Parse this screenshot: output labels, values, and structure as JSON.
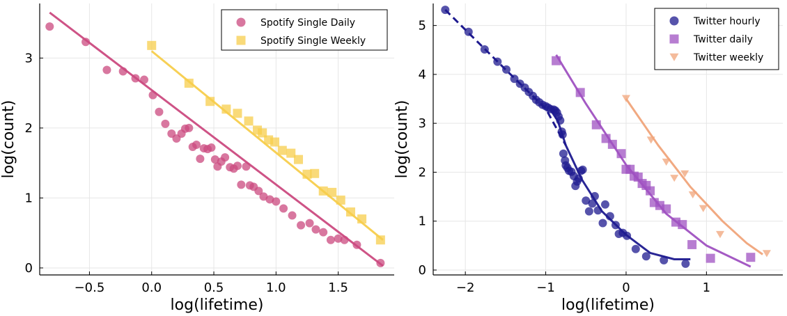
{
  "chart_data": [
    {
      "type": "scatter",
      "xlabel": "log(lifetime)",
      "ylabel": "log(count)",
      "xlim": [
        -0.9,
        1.95
      ],
      "ylim": [
        -0.1,
        3.78
      ],
      "xticks": [
        -0.5,
        0.0,
        0.5,
        1.0,
        1.5
      ],
      "xtick_labels": [
        "−0.5",
        "0.0",
        "0.5",
        "1.0",
        "1.5"
      ],
      "yticks": [
        0,
        1,
        2,
        3
      ],
      "ytick_labels": [
        "0",
        "1",
        "2",
        "3"
      ],
      "grid": true,
      "legend_position": "top-right",
      "series": [
        {
          "name": "Spotify Single Daily",
          "marker": "circle",
          "color": "#cb4a7f",
          "points": [
            [
              -0.82,
              3.45
            ],
            [
              -0.53,
              3.23
            ],
            [
              -0.36,
              2.83
            ],
            [
              -0.23,
              2.81
            ],
            [
              -0.13,
              2.71
            ],
            [
              -0.06,
              2.69
            ],
            [
              0.01,
              2.47
            ],
            [
              0.06,
              2.23
            ],
            [
              0.11,
              2.06
            ],
            [
              0.16,
              1.92
            ],
            [
              0.2,
              1.85
            ],
            [
              0.24,
              1.92
            ],
            [
              0.27,
              1.99
            ],
            [
              0.3,
              2.0
            ],
            [
              0.33,
              1.73
            ],
            [
              0.36,
              1.76
            ],
            [
              0.39,
              1.56
            ],
            [
              0.42,
              1.71
            ],
            [
              0.45,
              1.7
            ],
            [
              0.48,
              1.72
            ],
            [
              0.51,
              1.55
            ],
            [
              0.53,
              1.45
            ],
            [
              0.56,
              1.52
            ],
            [
              0.59,
              1.58
            ],
            [
              0.63,
              1.44
            ],
            [
              0.66,
              1.42
            ],
            [
              0.69,
              1.46
            ],
            [
              0.72,
              1.19
            ],
            [
              0.76,
              1.45
            ],
            [
              0.79,
              1.18
            ],
            [
              0.82,
              1.16
            ],
            [
              0.86,
              1.1
            ],
            [
              0.9,
              1.02
            ],
            [
              0.95,
              0.98
            ],
            [
              1.0,
              0.95
            ],
            [
              1.06,
              0.85
            ],
            [
              1.13,
              0.75
            ],
            [
              1.2,
              0.61
            ],
            [
              1.27,
              0.64
            ],
            [
              1.32,
              0.55
            ],
            [
              1.38,
              0.51
            ],
            [
              1.44,
              0.4
            ],
            [
              1.5,
              0.42
            ],
            [
              1.55,
              0.4
            ],
            [
              1.65,
              0.33
            ],
            [
              1.84,
              0.07
            ]
          ],
          "fit_line": [
            [
              -0.82,
              3.65
            ],
            [
              1.86,
              0.03
            ]
          ]
        },
        {
          "name": "Spotify Single Weekly",
          "marker": "square",
          "color": "#f7ce4c",
          "points": [
            [
              0.0,
              3.18
            ],
            [
              0.3,
              2.64
            ],
            [
              0.47,
              2.38
            ],
            [
              0.6,
              2.27
            ],
            [
              0.69,
              2.21
            ],
            [
              0.78,
              2.1
            ],
            [
              0.85,
              1.97
            ],
            [
              0.89,
              1.93
            ],
            [
              0.94,
              1.83
            ],
            [
              0.99,
              1.8
            ],
            [
              1.05,
              1.68
            ],
            [
              1.12,
              1.64
            ],
            [
              1.18,
              1.55
            ],
            [
              1.25,
              1.34
            ],
            [
              1.31,
              1.35
            ],
            [
              1.38,
              1.1
            ],
            [
              1.45,
              1.08
            ],
            [
              1.52,
              0.97
            ],
            [
              1.6,
              0.8
            ],
            [
              1.69,
              0.7
            ],
            [
              1.84,
              0.4
            ]
          ],
          "fit_line": [
            [
              0.0,
              3.1
            ],
            [
              1.86,
              0.4
            ]
          ]
        }
      ]
    },
    {
      "type": "scatter",
      "xlabel": "log(lifetime)",
      "ylabel": "log(count)",
      "xlim": [
        -2.4,
        1.95
      ],
      "ylim": [
        -0.1,
        5.45
      ],
      "xticks": [
        -2,
        -1,
        0,
        1
      ],
      "xtick_labels": [
        "−2",
        "−1",
        "0",
        "1"
      ],
      "yticks": [
        0,
        1,
        2,
        3,
        4,
        5
      ],
      "ytick_labels": [
        "0",
        "1",
        "2",
        "3",
        "4",
        "5"
      ],
      "grid": true,
      "legend_position": "top-right",
      "series": [
        {
          "name": "Twitter hourly",
          "marker": "circle",
          "color": "#1e1a8f",
          "points": [
            [
              -2.25,
              5.32
            ],
            [
              -1.96,
              4.87
            ],
            [
              -1.76,
              4.51
            ],
            [
              -1.6,
              4.26
            ],
            [
              -1.49,
              4.1
            ],
            [
              -1.39,
              3.91
            ],
            [
              -1.32,
              3.81
            ],
            [
              -1.26,
              3.73
            ],
            [
              -1.21,
              3.64
            ],
            [
              -1.16,
              3.56
            ],
            [
              -1.12,
              3.48
            ],
            [
              -1.08,
              3.43
            ],
            [
              -1.04,
              3.38
            ],
            [
              -1.0,
              3.35
            ],
            [
              -0.97,
              3.32
            ],
            [
              -0.94,
              3.29
            ],
            [
              -0.9,
              3.28
            ],
            [
              -0.88,
              3.26
            ],
            [
              -0.86,
              3.22
            ],
            [
              -0.84,
              3.14
            ],
            [
              -0.82,
              3.06
            ],
            [
              -0.8,
              2.83
            ],
            [
              -0.79,
              2.77
            ],
            [
              -0.78,
              2.38
            ],
            [
              -0.76,
              2.24
            ],
            [
              -0.75,
              2.14
            ],
            [
              -0.73,
              2.09
            ],
            [
              -0.71,
              2.03
            ],
            [
              -0.68,
              2.01
            ],
            [
              -0.65,
              1.92
            ],
            [
              -0.63,
              1.72
            ],
            [
              -0.61,
              1.81
            ],
            [
              -0.59,
              1.87
            ],
            [
              -0.56,
              2.03
            ],
            [
              -0.54,
              2.05
            ],
            [
              -0.5,
              1.42
            ],
            [
              -0.46,
              1.2
            ],
            [
              -0.42,
              1.36
            ],
            [
              -0.39,
              1.51
            ],
            [
              -0.35,
              1.22
            ],
            [
              -0.29,
              0.96
            ],
            [
              -0.26,
              1.34
            ],
            [
              -0.2,
              1.1
            ],
            [
              -0.13,
              0.92
            ],
            [
              -0.09,
              0.74
            ],
            [
              -0.04,
              0.76
            ],
            [
              0.01,
              0.7
            ],
            [
              0.12,
              0.43
            ],
            [
              0.25,
              0.28
            ],
            [
              0.47,
              0.2
            ],
            [
              0.74,
              0.13
            ]
          ],
          "fit_dashed": [
            [
              -2.25,
              5.32
            ],
            [
              -1.5,
              4.1
            ],
            [
              -1.0,
              3.3
            ],
            [
              -0.75,
              2.55
            ]
          ],
          "fit_line": [
            [
              -0.93,
              3.25
            ],
            [
              -0.85,
              3.05
            ],
            [
              -0.75,
              2.55
            ],
            [
              -0.55,
              1.85
            ],
            [
              -0.3,
              1.2
            ],
            [
              0.0,
              0.72
            ],
            [
              0.3,
              0.35
            ],
            [
              0.6,
              0.22
            ],
            [
              0.8,
              0.22
            ]
          ]
        },
        {
          "name": "Twitter daily",
          "marker": "square",
          "color": "#9f51c1",
          "points": [
            [
              -0.87,
              4.28
            ],
            [
              -0.57,
              3.63
            ],
            [
              -0.37,
              2.97
            ],
            [
              -0.25,
              2.69
            ],
            [
              -0.17,
              2.57
            ],
            [
              -0.06,
              2.38
            ],
            [
              0.0,
              2.06
            ],
            [
              0.05,
              2.06
            ],
            [
              0.1,
              1.92
            ],
            [
              0.15,
              1.9
            ],
            [
              0.2,
              1.77
            ],
            [
              0.25,
              1.73
            ],
            [
              0.3,
              1.62
            ],
            [
              0.35,
              1.38
            ],
            [
              0.42,
              1.32
            ],
            [
              0.5,
              1.25
            ],
            [
              0.62,
              0.98
            ],
            [
              0.7,
              0.93
            ],
            [
              0.82,
              0.52
            ],
            [
              1.05,
              0.24
            ],
            [
              1.55,
              0.26
            ]
          ],
          "fit_line": [
            [
              -0.87,
              4.4
            ],
            [
              -0.5,
              3.4
            ],
            [
              0.0,
              2.15
            ],
            [
              0.5,
              1.15
            ],
            [
              1.0,
              0.5
            ],
            [
              1.55,
              0.07
            ]
          ]
        },
        {
          "name": "Twitter weekly",
          "marker": "triangle-down",
          "color": "#f0a47a",
          "points": [
            [
              0.0,
              3.51
            ],
            [
              0.31,
              2.66
            ],
            [
              0.5,
              2.21
            ],
            [
              0.6,
              1.88
            ],
            [
              0.73,
              1.97
            ],
            [
              0.83,
              1.54
            ],
            [
              0.96,
              1.26
            ],
            [
              1.17,
              0.73
            ],
            [
              1.75,
              0.34
            ]
          ],
          "fit_line": [
            [
              0.0,
              3.5
            ],
            [
              0.4,
              2.55
            ],
            [
              0.8,
              1.7
            ],
            [
              1.2,
              1.0
            ],
            [
              1.5,
              0.55
            ],
            [
              1.7,
              0.32
            ]
          ]
        }
      ]
    }
  ]
}
